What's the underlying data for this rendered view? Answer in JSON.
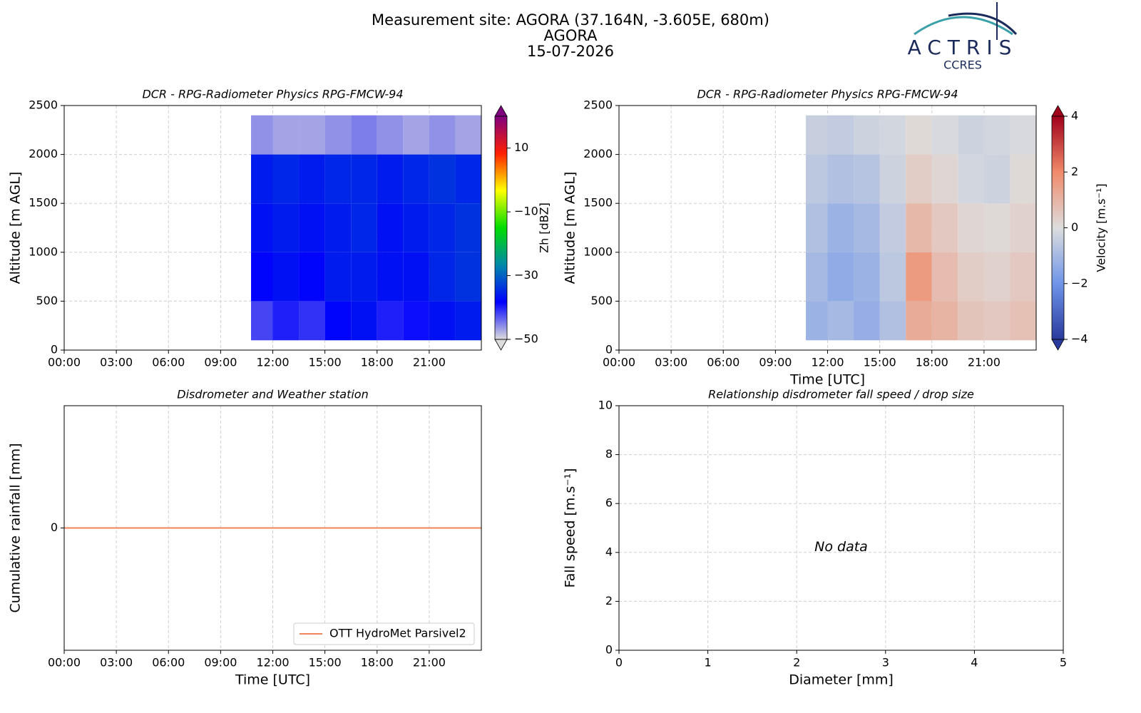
{
  "header": {
    "title_lines": [
      "Measurement site: AGORA (37.164N, -3.605E, 680m)",
      "AGORA",
      "15-07-2026"
    ],
    "logo": {
      "name": "ACTRIS",
      "subtitle": "CCRES"
    }
  },
  "chart_data": [
    {
      "type": "heatmap",
      "title": "DCR - RPG-Radiometer Physics RPG-FMCW-94",
      "ylabel": "Altitude [m AGL]",
      "xlim": [
        0,
        24
      ],
      "xticks": [
        {
          "value": 0,
          "label": "00:00"
        },
        {
          "value": 3,
          "label": "03:00"
        },
        {
          "value": 6,
          "label": "06:00"
        },
        {
          "value": 9,
          "label": "09:00"
        },
        {
          "value": 12,
          "label": "12:00"
        },
        {
          "value": 15,
          "label": "15:00"
        },
        {
          "value": 18,
          "label": "18:00"
        },
        {
          "value": 21,
          "label": "21:00"
        }
      ],
      "ylim": [
        0,
        2500
      ],
      "yticks": [
        0,
        500,
        1000,
        1500,
        2000,
        2500
      ],
      "grid": true,
      "x_edges": [
        10.75,
        12,
        13.5,
        15,
        16.5,
        18,
        19.5,
        21,
        22.5,
        24
      ],
      "y_edges": [
        100,
        500,
        1000,
        1500,
        2000,
        2400
      ],
      "z": [
        [
          -42,
          -40,
          -41,
          -38,
          -37,
          -40,
          -39,
          -37,
          -36
        ],
        [
          -38,
          -37,
          -38,
          -36,
          -36,
          -37,
          -37,
          -35,
          -34
        ],
        [
          -37,
          -36,
          -37,
          -36,
          -35,
          -37,
          -36,
          -35,
          -34
        ],
        [
          -36,
          -35,
          -36,
          -35,
          -35,
          -36,
          -35,
          -34,
          -35
        ],
        [
          -46,
          -47,
          -47,
          -46,
          -45,
          -46,
          -47,
          -46,
          -47
        ]
      ],
      "colorbar_label": "Zh [dBZ]",
      "clim": [
        -50,
        20
      ],
      "cticks": [
        {
          "value": -50,
          "label": "−50"
        },
        {
          "value": -30,
          "label": "−30"
        },
        {
          "value": -10,
          "label": "−10"
        },
        10
      ],
      "colormap": [
        "#dcdcdc",
        "#0000ff",
        "#0088aa",
        "#00dd00",
        "#ffff00",
        "#ff2000",
        "#7f007f"
      ]
    },
    {
      "type": "heatmap",
      "title": "DCR - RPG-Radiometer Physics RPG-FMCW-94",
      "xlabel": "Time [UTC]",
      "ylabel": "Altitude [m AGL]",
      "xlim": [
        0,
        24
      ],
      "xticks": [
        {
          "value": 0,
          "label": "00:00"
        },
        {
          "value": 3,
          "label": "03:00"
        },
        {
          "value": 6,
          "label": "06:00"
        },
        {
          "value": 9,
          "label": "09:00"
        },
        {
          "value": 12,
          "label": "12:00"
        },
        {
          "value": 15,
          "label": "15:00"
        },
        {
          "value": 18,
          "label": "18:00"
        },
        {
          "value": 21,
          "label": "21:00"
        }
      ],
      "ylim": [
        0,
        2500
      ],
      "yticks": [
        0,
        500,
        1000,
        1500,
        2000,
        2500
      ],
      "grid": true,
      "x_edges": [
        10.75,
        12,
        13.5,
        15,
        16.5,
        18,
        19.5,
        21,
        22.5,
        24
      ],
      "y_edges": [
        100,
        500,
        1000,
        1500,
        2000,
        2400
      ],
      "z": [
        [
          -1.2,
          -1.0,
          -1.3,
          -0.8,
          1.2,
          1.0,
          0.6,
          0.5,
          0.7
        ],
        [
          -1.0,
          -1.4,
          -1.2,
          -0.6,
          1.6,
          0.8,
          0.4,
          0.3,
          0.5
        ],
        [
          -0.8,
          -1.2,
          -1.0,
          -0.5,
          0.9,
          0.5,
          0.2,
          0.1,
          0.3
        ],
        [
          -0.6,
          -0.8,
          -0.7,
          -0.3,
          0.4,
          0.2,
          -0.2,
          -0.3,
          0.1
        ],
        [
          -0.4,
          -0.5,
          -0.3,
          -0.2,
          0.1,
          -0.1,
          -0.3,
          -0.2,
          -0.1
        ]
      ],
      "colorbar_label": "Velocity [m.s⁻¹]",
      "clim": [
        -4,
        4
      ],
      "cticks": [
        {
          "value": -4,
          "label": "−4"
        },
        {
          "value": -2,
          "label": "−2"
        },
        0,
        2,
        4
      ],
      "colormap": [
        "#2a3a9e",
        "#6f95e8",
        "#dddddd",
        "#f08a6a",
        "#a0001a"
      ]
    },
    {
      "type": "line",
      "title": "Disdrometer and Weather station",
      "xlabel": "Time [UTC]",
      "ylabel": "Cumulative rainfall [mm]",
      "xlim": [
        0,
        24
      ],
      "xticks": [
        {
          "value": 0,
          "label": "00:00"
        },
        {
          "value": 3,
          "label": "03:00"
        },
        {
          "value": 6,
          "label": "06:00"
        },
        {
          "value": 9,
          "label": "09:00"
        },
        {
          "value": 12,
          "label": "12:00"
        },
        {
          "value": 15,
          "label": "15:00"
        },
        {
          "value": 18,
          "label": "18:00"
        },
        {
          "value": 21,
          "label": "21:00"
        }
      ],
      "ylim": [
        -0.05,
        0.05
      ],
      "yticks": [
        0
      ],
      "grid": true,
      "legend": "lower right",
      "x": [
        0,
        24
      ],
      "series": [
        {
          "name": "OTT HydroMet Parsivel2",
          "color": "#f0855a",
          "values": [
            0,
            0
          ]
        }
      ]
    },
    {
      "type": "scatter",
      "title": "Relationship disdrometer fall speed / drop size",
      "xlabel": "Diameter [mm]",
      "ylabel": "Fall speed [m.s⁻¹]",
      "xlim": [
        0,
        5
      ],
      "xticks": [
        0,
        1,
        2,
        3,
        4,
        5
      ],
      "ylim": [
        0,
        10
      ],
      "yticks": [
        0,
        2,
        4,
        6,
        8,
        10
      ],
      "grid": true,
      "annotation": "No data"
    }
  ]
}
